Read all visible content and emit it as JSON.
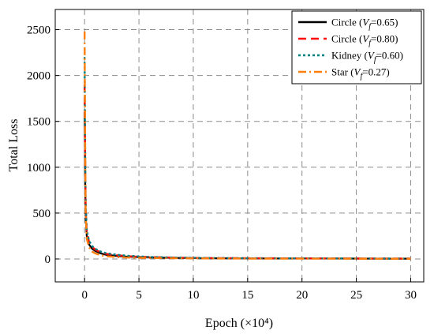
{
  "chart_data": {
    "type": "line",
    "title": "",
    "xlabel": "Epoch (×10⁴)",
    "ylabel": "Total Loss",
    "xlim": [
      -2.7,
      31.2
    ],
    "ylim": [
      -250,
      2720
    ],
    "x_ticks": [
      0,
      5,
      10,
      15,
      20,
      25,
      30
    ],
    "y_ticks": [
      0,
      500,
      1000,
      1500,
      2000,
      2500
    ],
    "grid": true,
    "legend_position": "top-right",
    "series": [
      {
        "name": "Circle (Vf=0.65)",
        "legend": {
          "prefix": "Circle (",
          "var": "V",
          "sub": "f",
          "suffix": "=0.65)"
        },
        "color": "#000000",
        "dash": "",
        "values": [
          [
            0,
            1600
          ],
          [
            0.05,
            900
          ],
          [
            0.1,
            450
          ],
          [
            0.2,
            250
          ],
          [
            0.4,
            160
          ],
          [
            0.7,
            110
          ],
          [
            1,
            85
          ],
          [
            1.5,
            60
          ],
          [
            2,
            45
          ],
          [
            3,
            32
          ],
          [
            4,
            25
          ],
          [
            5,
            20
          ],
          [
            6,
            16
          ],
          [
            8,
            12
          ],
          [
            10,
            9
          ],
          [
            12,
            7
          ],
          [
            15,
            6
          ],
          [
            18,
            5
          ],
          [
            20,
            5
          ],
          [
            25,
            4
          ],
          [
            30,
            3
          ]
        ]
      },
      {
        "name": "Circle (Vf=0.80)",
        "legend": {
          "prefix": "Circle (",
          "var": "V",
          "sub": "f",
          "suffix": "=0.80)"
        },
        "color": "#ff0000",
        "dash": "10 6",
        "values": [
          [
            0,
            1900
          ],
          [
            0.05,
            1100
          ],
          [
            0.1,
            550
          ],
          [
            0.2,
            300
          ],
          [
            0.4,
            190
          ],
          [
            0.7,
            130
          ],
          [
            1,
            100
          ],
          [
            1.5,
            70
          ],
          [
            2,
            55
          ],
          [
            3,
            40
          ],
          [
            4,
            30
          ],
          [
            5,
            24
          ],
          [
            6,
            20
          ],
          [
            8,
            15
          ],
          [
            10,
            11
          ],
          [
            12,
            9
          ],
          [
            15,
            8
          ],
          [
            18,
            7
          ],
          [
            20,
            6
          ],
          [
            25,
            5
          ],
          [
            30,
            4
          ]
        ]
      },
      {
        "name": "Kidney (Vf=0.60)",
        "legend": {
          "prefix": "Kidney (",
          "var": "V",
          "sub": "f",
          "suffix": "=0.60)"
        },
        "color": "#008080",
        "dash": "3 3",
        "values": [
          [
            0,
            2200
          ],
          [
            0.05,
            1200
          ],
          [
            0.1,
            600
          ],
          [
            0.2,
            320
          ],
          [
            0.4,
            200
          ],
          [
            0.7,
            140
          ],
          [
            1,
            110
          ],
          [
            1.5,
            80
          ],
          [
            2,
            62
          ],
          [
            3,
            45
          ],
          [
            4,
            35
          ],
          [
            5,
            28
          ],
          [
            6,
            22
          ],
          [
            8,
            16
          ],
          [
            10,
            12
          ],
          [
            12,
            10
          ],
          [
            15,
            8
          ],
          [
            18,
            7
          ],
          [
            20,
            6
          ],
          [
            25,
            5
          ],
          [
            30,
            4
          ]
        ]
      },
      {
        "name": "Star (Vf=0.27)",
        "legend": {
          "prefix": "Star (",
          "var": "V",
          "sub": "f",
          "suffix": "=0.27)"
        },
        "color": "#ff7f0e",
        "dash": "10 4 2 4",
        "values": [
          [
            0,
            2480
          ],
          [
            0.05,
            1300
          ],
          [
            0.1,
            500
          ],
          [
            0.2,
            220
          ],
          [
            0.4,
            130
          ],
          [
            0.7,
            80
          ],
          [
            1,
            60
          ],
          [
            1.5,
            40
          ],
          [
            2,
            30
          ],
          [
            3,
            20
          ],
          [
            4,
            15
          ],
          [
            5,
            12
          ],
          [
            6,
            10
          ],
          [
            8,
            8
          ],
          [
            10,
            6
          ],
          [
            12,
            5
          ],
          [
            15,
            4
          ],
          [
            18,
            4
          ],
          [
            20,
            3
          ],
          [
            25,
            3
          ],
          [
            30,
            2
          ]
        ]
      }
    ]
  }
}
